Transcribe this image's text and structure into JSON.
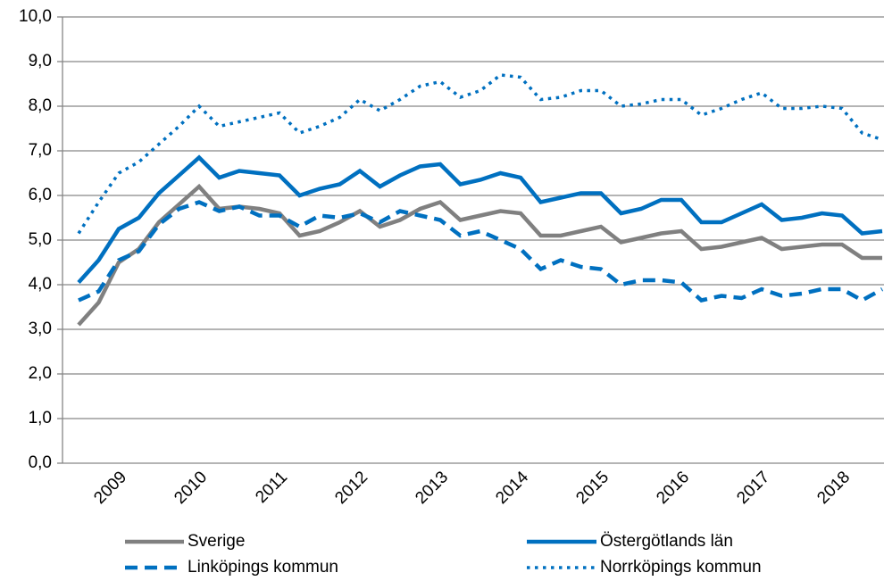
{
  "chart_data": {
    "type": "line",
    "categories": [
      null,
      null,
      "2009",
      null,
      null,
      null,
      "2010",
      null,
      null,
      null,
      "2011",
      null,
      null,
      null,
      "2012",
      null,
      null,
      null,
      "2013",
      null,
      null,
      null,
      "2014",
      null,
      null,
      null,
      "2015",
      null,
      null,
      null,
      "2016",
      null,
      null,
      null,
      "2017",
      null,
      null,
      null,
      "2018",
      null,
      null
    ],
    "series": [
      {
        "name": "Sverige",
        "color": "#808080",
        "style": "solid",
        "values": [
          3.1,
          3.6,
          4.5,
          4.8,
          5.4,
          5.8,
          6.2,
          5.7,
          5.75,
          5.7,
          5.6,
          5.1,
          5.2,
          5.4,
          5.65,
          5.3,
          5.45,
          5.7,
          5.85,
          5.45,
          5.55,
          5.65,
          5.6,
          5.1,
          5.1,
          5.2,
          5.3,
          4.95,
          5.05,
          5.15,
          5.2,
          4.8,
          4.85,
          4.95,
          5.05,
          4.8,
          4.85,
          4.9,
          4.9,
          4.6,
          4.6
        ]
      },
      {
        "name": "Östergötlands län",
        "color": "#0070c0",
        "style": "solid",
        "values": [
          4.05,
          4.55,
          5.25,
          5.5,
          6.05,
          6.45,
          6.85,
          6.4,
          6.55,
          6.5,
          6.45,
          6.0,
          6.15,
          6.25,
          6.55,
          6.2,
          6.45,
          6.65,
          6.7,
          6.25,
          6.35,
          6.5,
          6.4,
          5.85,
          5.95,
          6.05,
          6.05,
          5.6,
          5.7,
          5.9,
          5.9,
          5.4,
          5.4,
          5.6,
          5.8,
          5.45,
          5.5,
          5.6,
          5.55,
          5.15,
          5.2
        ]
      },
      {
        "name": "Linköpings kommun",
        "color": "#0070c0",
        "style": "dashed",
        "values": [
          3.65,
          3.85,
          4.55,
          4.75,
          5.35,
          5.7,
          5.85,
          5.65,
          5.75,
          5.55,
          5.55,
          5.3,
          5.55,
          5.5,
          5.6,
          5.4,
          5.65,
          5.55,
          5.45,
          5.1,
          5.2,
          5.0,
          4.8,
          4.35,
          4.55,
          4.4,
          4.35,
          4.0,
          4.1,
          4.1,
          4.05,
          3.65,
          3.75,
          3.7,
          3.9,
          3.75,
          3.8,
          3.9,
          3.9,
          3.65,
          3.9
        ]
      },
      {
        "name": "Norrköpings kommun",
        "color": "#0070c0",
        "style": "dotted",
        "values": [
          5.15,
          5.85,
          6.5,
          6.75,
          7.15,
          7.55,
          8.0,
          7.55,
          7.65,
          7.75,
          7.85,
          7.4,
          7.55,
          7.75,
          8.15,
          7.9,
          8.15,
          8.45,
          8.55,
          8.2,
          8.35,
          8.7,
          8.65,
          8.15,
          8.2,
          8.35,
          8.35,
          8.0,
          8.05,
          8.15,
          8.15,
          7.8,
          7.95,
          8.15,
          8.3,
          7.95,
          7.95,
          8.0,
          7.95,
          7.4,
          7.25
        ]
      }
    ],
    "ylim": [
      0,
      10
    ],
    "yticks": [
      {
        "value": 0,
        "label": "0,0"
      },
      {
        "value": 1,
        "label": "1,0"
      },
      {
        "value": 2,
        "label": "2,0"
      },
      {
        "value": 3,
        "label": "3,0"
      },
      {
        "value": 4,
        "label": "4,0"
      },
      {
        "value": 5,
        "label": "5,0"
      },
      {
        "value": 6,
        "label": "6,0"
      },
      {
        "value": 7,
        "label": "7,0"
      },
      {
        "value": 8,
        "label": "8,0"
      },
      {
        "value": 9,
        "label": "9,0"
      },
      {
        "value": 10,
        "label": "10,0"
      }
    ],
    "grid": true,
    "legend": "bottom"
  }
}
